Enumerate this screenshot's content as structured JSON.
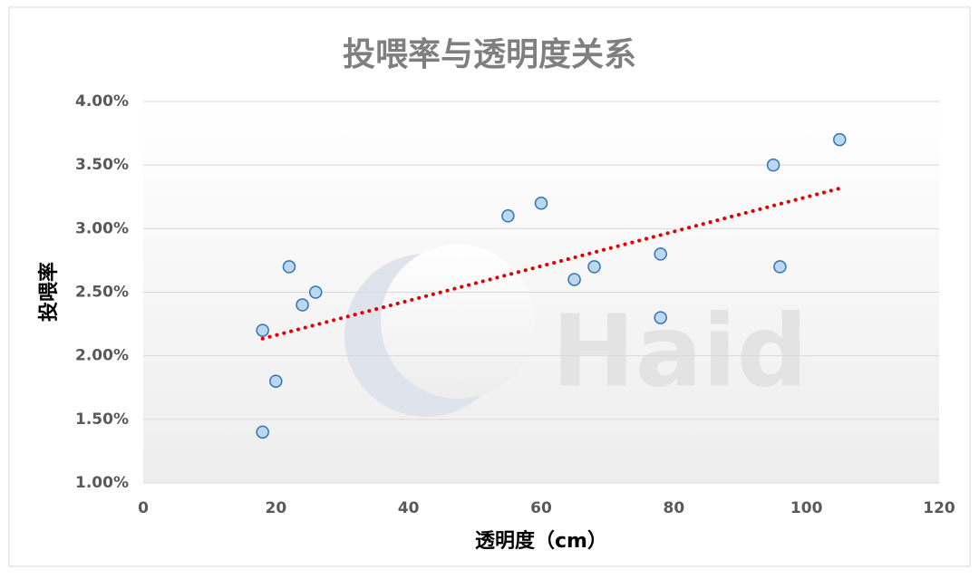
{
  "chart_data": {
    "type": "scatter",
    "title": "投喂率与透明度关系",
    "x_label": "透明度（cm）",
    "y_label": "投喂率",
    "watermark": "Haid",
    "x": [
      18,
      18,
      20,
      22,
      24,
      26,
      55,
      60,
      65,
      68,
      78,
      78,
      95,
      96,
      105
    ],
    "values": [
      2.2,
      1.4,
      1.8,
      2.7,
      2.4,
      2.5,
      3.1,
      3.2,
      2.6,
      2.7,
      2.8,
      2.3,
      3.5,
      2.7,
      3.7
    ],
    "color": "#bdd7ee",
    "edge_color": "#2e75b6",
    "trendline": "linear",
    "trendline_color": "#e00000",
    "xlim": [
      0,
      120
    ],
    "xticks": [
      0,
      20,
      40,
      60,
      80,
      100,
      120
    ],
    "ylim": [
      1,
      4
    ],
    "yticks": [
      {
        "value": 1,
        "label": "1.00%"
      },
      {
        "value": 1.5,
        "label": "1.50%"
      },
      {
        "value": 2,
        "label": "2.00%"
      },
      {
        "value": 2.5,
        "label": "2.50%"
      },
      {
        "value": 3,
        "label": "3.00%"
      },
      {
        "value": 3.5,
        "label": "3.50%"
      },
      {
        "value": 4,
        "label": "4.00%"
      }
    ],
    "grid": true
  }
}
